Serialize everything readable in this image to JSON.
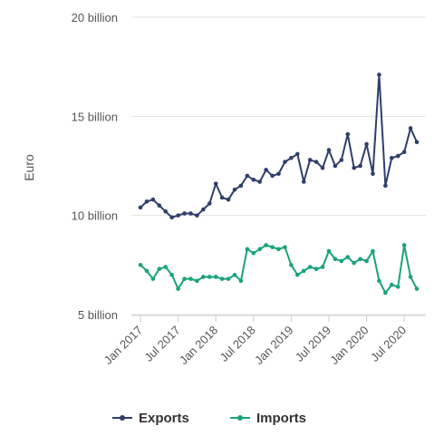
{
  "chart_data": {
    "type": "line",
    "title": "",
    "xlabel": "",
    "ylabel": "Euro",
    "ylim": [
      5000000000,
      20000000000
    ],
    "y_ticks": [
      {
        "value": 5000000000,
        "label": "5 billion"
      },
      {
        "value": 10000000000,
        "label": "10 billion"
      },
      {
        "value": 15000000000,
        "label": "15 billion"
      },
      {
        "value": 20000000000,
        "label": "20 billion"
      }
    ],
    "x": [
      "2017-01",
      "2017-02",
      "2017-03",
      "2017-04",
      "2017-05",
      "2017-06",
      "2017-07",
      "2017-08",
      "2017-09",
      "2017-10",
      "2017-11",
      "2017-12",
      "2018-01",
      "2018-02",
      "2018-03",
      "2018-04",
      "2018-05",
      "2018-06",
      "2018-07",
      "2018-08",
      "2018-09",
      "2018-10",
      "2018-11",
      "2018-12",
      "2019-01",
      "2019-02",
      "2019-03",
      "2019-04",
      "2019-05",
      "2019-06",
      "2019-07",
      "2019-08",
      "2019-09",
      "2019-10",
      "2019-11",
      "2019-12",
      "2020-01",
      "2020-02",
      "2020-03",
      "2020-04",
      "2020-05",
      "2020-06",
      "2020-07",
      "2020-08",
      "2020-09"
    ],
    "x_ticks": [
      {
        "index": 0,
        "label": "Jan 2017"
      },
      {
        "index": 6,
        "label": "Jul 2017"
      },
      {
        "index": 12,
        "label": "Jan 2018"
      },
      {
        "index": 18,
        "label": "Jul 2018"
      },
      {
        "index": 24,
        "label": "Jan 2019"
      },
      {
        "index": 30,
        "label": "Jul 2019"
      },
      {
        "index": 36,
        "label": "Jan 2020"
      },
      {
        "index": 42,
        "label": "Jul 2020"
      }
    ],
    "grid": "horizontal",
    "legend_position": "bottom",
    "series": [
      {
        "name": "Exports",
        "color": "#2f3f6a",
        "values": [
          10.4,
          10.7,
          10.8,
          10.5,
          10.2,
          9.9,
          10.0,
          10.1,
          10.1,
          10.0,
          10.3,
          10.6,
          11.6,
          10.9,
          10.8,
          11.3,
          11.5,
          12.0,
          11.8,
          11.7,
          12.3,
          12.0,
          12.1,
          12.7,
          12.9,
          13.1,
          11.7,
          12.8,
          12.7,
          12.4,
          13.3,
          12.5,
          12.8,
          14.1,
          12.4,
          12.5,
          13.6,
          12.1,
          17.1,
          11.5,
          12.9,
          13.0,
          13.2,
          14.4,
          13.7
        ]
      },
      {
        "name": "Imports",
        "color": "#1aa37a",
        "values": [
          7.5,
          7.2,
          6.8,
          7.3,
          7.4,
          7.0,
          6.3,
          6.8,
          6.8,
          6.7,
          6.9,
          6.9,
          6.9,
          6.8,
          6.8,
          7.0,
          6.7,
          8.3,
          8.1,
          8.3,
          8.5,
          8.4,
          8.3,
          8.4,
          7.5,
          7.0,
          7.2,
          7.4,
          7.3,
          7.4,
          8.2,
          7.8,
          7.7,
          7.9,
          7.6,
          7.8,
          7.7,
          8.2,
          6.7,
          6.1,
          6.5,
          6.4,
          8.5,
          6.9,
          6.3
        ]
      }
    ]
  }
}
